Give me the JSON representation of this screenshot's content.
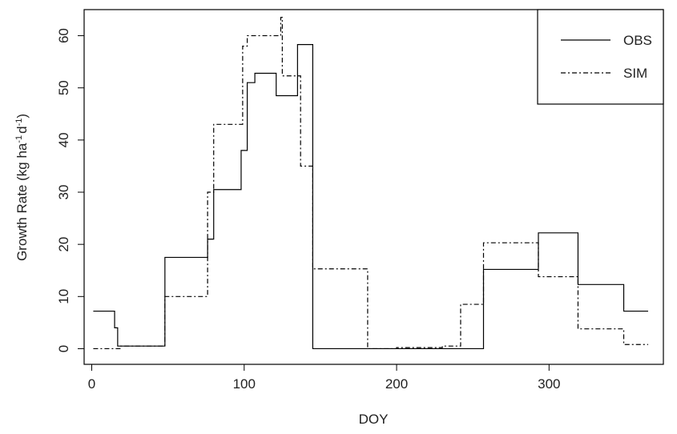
{
  "chart_data": {
    "type": "line",
    "title": "",
    "xlabel": "DOY",
    "ylabel_parts": [
      "Growth Rate (kg ha",
      "-1",
      "d",
      "-1",
      ")"
    ],
    "xlim": [
      -5,
      375
    ],
    "ylim": [
      -3,
      65
    ],
    "x_ticks": [
      0,
      100,
      200,
      300
    ],
    "y_ticks": [
      0,
      10,
      20,
      30,
      40,
      50,
      60
    ],
    "step": "post",
    "legend": {
      "placement": "top-right",
      "entries": [
        "OBS",
        "SIM"
      ]
    },
    "series": [
      {
        "name": "OBS",
        "style": "solid",
        "x": [
          1,
          15,
          17,
          19,
          48,
          76,
          80,
          98,
          102,
          107,
          121,
          135,
          145,
          257,
          293,
          319,
          349,
          365
        ],
        "y": [
          7.2,
          4.0,
          0.5,
          0.5,
          17.5,
          21.0,
          30.5,
          38.0,
          51.0,
          52.8,
          48.5,
          58.3,
          0.0,
          15.2,
          22.2,
          12.3,
          7.2,
          7.2
        ]
      },
      {
        "name": "SIM",
        "style": "dashdot",
        "x": [
          1,
          15,
          19,
          48,
          76,
          80,
          99,
          102,
          124,
          125,
          137,
          145,
          181,
          200,
          230,
          242,
          257,
          293,
          319,
          349,
          365
        ],
        "y": [
          0.0,
          0.0,
          0.5,
          10.0,
          30.0,
          43.0,
          58.0,
          60.0,
          63.5,
          52.3,
          35.0,
          15.3,
          0.0,
          0.2,
          0.5,
          8.5,
          20.3,
          13.8,
          3.8,
          0.8,
          0.8
        ]
      }
    ]
  }
}
